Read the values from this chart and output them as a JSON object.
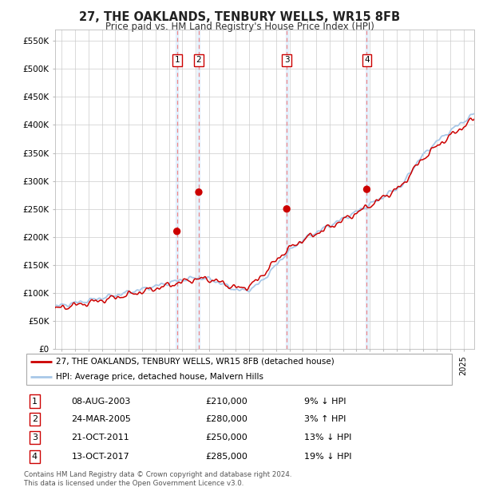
{
  "title": "27, THE OAKLANDS, TENBURY WELLS, WR15 8FB",
  "subtitle": "Price paid vs. HM Land Registry's House Price Index (HPI)",
  "ylim": [
    0,
    570000
  ],
  "yticks": [
    0,
    50000,
    100000,
    150000,
    200000,
    250000,
    300000,
    350000,
    400000,
    450000,
    500000,
    550000
  ],
  "ytick_labels": [
    "£0",
    "£50K",
    "£100K",
    "£150K",
    "£200K",
    "£250K",
    "£300K",
    "£350K",
    "£400K",
    "£450K",
    "£500K",
    "£550K"
  ],
  "sale_dates": [
    2003.6,
    2005.23,
    2011.8,
    2017.78
  ],
  "sale_prices": [
    210000,
    280000,
    250000,
    285000
  ],
  "sale_labels": [
    "1",
    "2",
    "3",
    "4"
  ],
  "hpi_line_color": "#a8c8e8",
  "price_line_color": "#cc0000",
  "sale_dot_color": "#cc0000",
  "vline_color": "#ee8888",
  "shade_color": "#ddeeff",
  "background_color": "#ffffff",
  "legend_house_label": "27, THE OAKLANDS, TENBURY WELLS, WR15 8FB (detached house)",
  "legend_hpi_label": "HPI: Average price, detached house, Malvern Hills",
  "table_rows": [
    [
      "1",
      "08-AUG-2003",
      "£210,000",
      "9% ↓ HPI"
    ],
    [
      "2",
      "24-MAR-2005",
      "£280,000",
      "3% ↑ HPI"
    ],
    [
      "3",
      "21-OCT-2011",
      "£250,000",
      "13% ↓ HPI"
    ],
    [
      "4",
      "13-OCT-2017",
      "£285,000",
      "19% ↓ HPI"
    ]
  ],
  "footer": "Contains HM Land Registry data © Crown copyright and database right 2024.\nThis data is licensed under the Open Government Licence v3.0.",
  "xmin": 1994.5,
  "xmax": 2025.8
}
